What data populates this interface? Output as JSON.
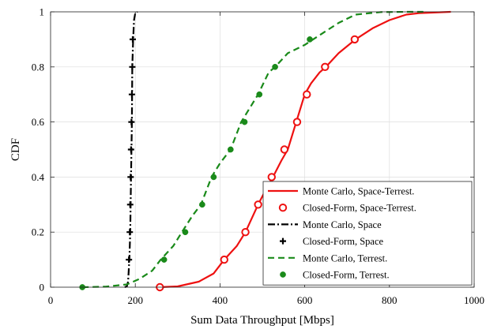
{
  "chart_data": {
    "type": "line",
    "title": "",
    "xlabel": "Sum Data Throughput [Mbps]",
    "ylabel": "CDF",
    "xlim": [
      0,
      1000
    ],
    "ylim": [
      0,
      1
    ],
    "xticks": [
      "0",
      "200",
      "400",
      "600",
      "800",
      "1000"
    ],
    "yticks": [
      "0",
      "0.2",
      "0.4",
      "0.6",
      "0.8",
      "1"
    ],
    "grid": true,
    "legend_position": "bottom-right",
    "colors": {
      "space_terrest": "#ee1111",
      "space": "#000000",
      "terrest": "#1a8a1a"
    },
    "series": [
      {
        "name": "Monte Carlo, Space-Terrest.",
        "style": "solid",
        "color": "#ee1111",
        "x": [
          255,
          300,
          350,
          385,
          410,
          440,
          460,
          490,
          510,
          525,
          545,
          560,
          580,
          600,
          615,
          635,
          650,
          680,
          720,
          760,
          800,
          840,
          870,
          900,
          945
        ],
        "y": [
          0,
          0.003,
          0.02,
          0.05,
          0.1,
          0.15,
          0.2,
          0.3,
          0.36,
          0.4,
          0.46,
          0.5,
          0.6,
          0.7,
          0.74,
          0.78,
          0.8,
          0.85,
          0.9,
          0.94,
          0.97,
          0.99,
          0.995,
          0.997,
          1
        ]
      },
      {
        "name": "Closed-Form, Space-Terrest.",
        "style": "marker-circle",
        "color": "#ee1111",
        "x": [
          258,
          410,
          460,
          490,
          522,
          552,
          582,
          605,
          648,
          718
        ],
        "y": [
          0,
          0.1,
          0.2,
          0.3,
          0.4,
          0.5,
          0.6,
          0.7,
          0.8,
          0.9
        ]
      },
      {
        "name": "Monte Carlo, Space",
        "style": "dashdot",
        "color": "#000000",
        "x": [
          175,
          180,
          183,
          186,
          188,
          190,
          192,
          193,
          195,
          197,
          200,
          205
        ],
        "y": [
          0,
          0.003,
          0.02,
          0.1,
          0.2,
          0.4,
          0.6,
          0.8,
          0.9,
          0.97,
          0.995,
          1
        ]
      },
      {
        "name": "Closed-Form, Space",
        "style": "marker-plus",
        "color": "#000000",
        "x": [
          185,
          187,
          188,
          189,
          190,
          191,
          192,
          193,
          194
        ],
        "y": [
          0.1,
          0.2,
          0.3,
          0.4,
          0.5,
          0.6,
          0.7,
          0.8,
          0.9
        ]
      },
      {
        "name": "Monte Carlo, Terrest.",
        "style": "dashed",
        "color": "#1a8a1a",
        "x": [
          75,
          130,
          180,
          210,
          240,
          260,
          290,
          310,
          335,
          355,
          380,
          400,
          425,
          450,
          470,
          490,
          515,
          530,
          560,
          600,
          640,
          680,
          720,
          780,
          850,
          880
        ],
        "y": [
          0,
          0.002,
          0.01,
          0.03,
          0.06,
          0.1,
          0.15,
          0.2,
          0.26,
          0.3,
          0.4,
          0.45,
          0.5,
          0.6,
          0.65,
          0.7,
          0.78,
          0.8,
          0.85,
          0.88,
          0.92,
          0.96,
          0.99,
          0.999,
          1,
          1
        ]
      },
      {
        "name": "Closed-Form, Terrest.",
        "style": "marker-dot",
        "color": "#1a8a1a",
        "x": [
          75,
          268,
          318,
          358,
          385,
          425,
          458,
          493,
          530,
          612
        ],
        "y": [
          0,
          0.1,
          0.2,
          0.3,
          0.4,
          0.5,
          0.6,
          0.7,
          0.8,
          0.9
        ]
      }
    ]
  }
}
